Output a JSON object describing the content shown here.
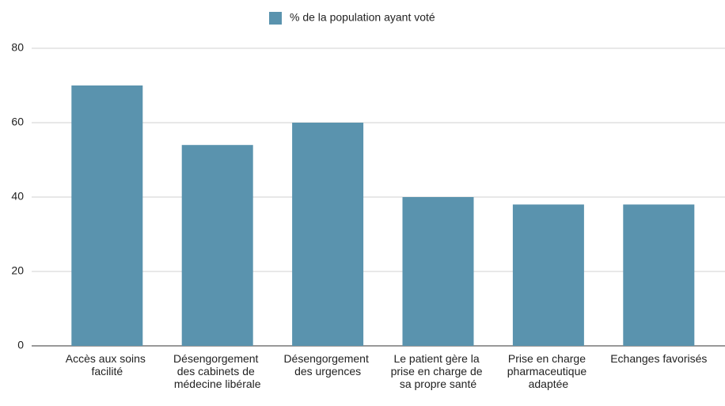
{
  "chart_data": {
    "type": "bar",
    "categories": [
      "Accès aux soins facilité",
      "Désengorgement des cabinets de médecine libérale",
      "Désengorgement des urgences",
      "Le patient gère la prise en charge de sa propre santé",
      "Prise en charge pharmaceutique adaptée",
      "Echanges favorisés"
    ],
    "series": [
      {
        "name": "% de la population ayant voté",
        "color": "#5a93ae",
        "values": [
          70,
          54,
          60,
          40,
          38,
          38
        ]
      }
    ],
    "ylim": [
      0,
      80
    ],
    "yticks": [
      0,
      20,
      40,
      60,
      80
    ],
    "grid": true,
    "legend": "top"
  }
}
